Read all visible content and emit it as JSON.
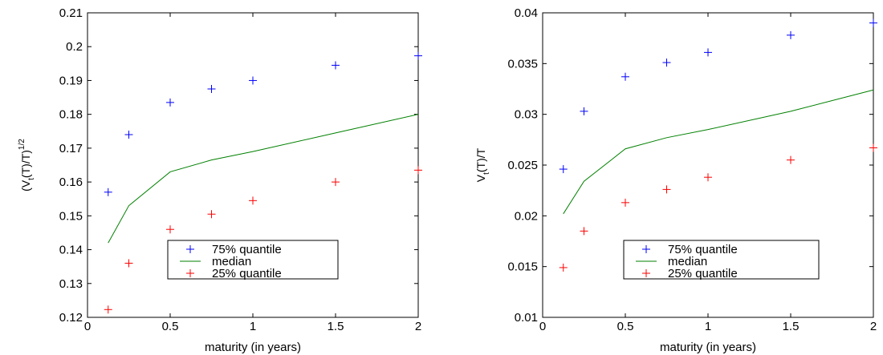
{
  "chart_data": [
    {
      "type": "scatter",
      "xlabel": "maturity (in years)",
      "ylabel": {
        "base": "(V",
        "sub": "t",
        "mid": "(T)/T)",
        "sup": "1/2"
      },
      "xlim": [
        0,
        2
      ],
      "ylim": [
        0.12,
        0.21
      ],
      "xticks": [
        0,
        0.5,
        1,
        1.5,
        2
      ],
      "xtick_labels": [
        "0",
        "0.5",
        "1",
        "1.5",
        "2"
      ],
      "yticks": [
        0.12,
        0.13,
        0.14,
        0.15,
        0.16,
        0.17,
        0.18,
        0.19,
        0.2,
        0.21
      ],
      "ytick_labels": [
        "0.12",
        "0.13",
        "0.14",
        "0.15",
        "0.16",
        "0.17",
        "0.18",
        "0.19",
        "0.2",
        "0.21"
      ],
      "legend_position": "lower-center",
      "grid": false,
      "series": [
        {
          "name": "75% quantile",
          "style": "plus",
          "color": "#0000ff",
          "x": [
            0.125,
            0.25,
            0.5,
            0.75,
            1,
            1.5,
            2
          ],
          "y": [
            0.157,
            0.174,
            0.1835,
            0.1875,
            0.19,
            0.1945,
            0.1973
          ]
        },
        {
          "name": "median",
          "style": "line",
          "color": "#008000",
          "x": [
            0.125,
            0.25,
            0.5,
            0.75,
            1,
            1.5,
            2
          ],
          "y": [
            0.142,
            0.153,
            0.163,
            0.1665,
            0.169,
            0.1745,
            0.18
          ]
        },
        {
          "name": "25% quantile",
          "style": "plus",
          "color": "#ff0000",
          "x": [
            0.125,
            0.25,
            0.5,
            0.75,
            1,
            1.5,
            2
          ],
          "y": [
            0.1223,
            0.136,
            0.146,
            0.1505,
            0.1545,
            0.16,
            0.1635
          ]
        }
      ]
    },
    {
      "type": "scatter",
      "xlabel": "maturity (in years)",
      "ylabel": {
        "base": "V",
        "sub": "t",
        "mid": "(T)/T",
        "sup": ""
      },
      "xlim": [
        0,
        2
      ],
      "ylim": [
        0.01,
        0.04
      ],
      "xticks": [
        0,
        0.5,
        1,
        1.5,
        2
      ],
      "xtick_labels": [
        "0",
        "0.5",
        "1",
        "1.5",
        "2"
      ],
      "yticks": [
        0.01,
        0.015,
        0.02,
        0.025,
        0.03,
        0.035,
        0.04
      ],
      "ytick_labels": [
        "0.01",
        "0.015",
        "0.02",
        "0.025",
        "0.03",
        "0.035",
        "0.04"
      ],
      "legend_position": "lower-center",
      "grid": false,
      "series": [
        {
          "name": "75% quantile",
          "style": "plus",
          "color": "#0000ff",
          "x": [
            0.125,
            0.25,
            0.5,
            0.75,
            1,
            1.5,
            2
          ],
          "y": [
            0.0246,
            0.0303,
            0.0337,
            0.0351,
            0.0361,
            0.0378,
            0.039
          ]
        },
        {
          "name": "median",
          "style": "line",
          "color": "#008000",
          "x": [
            0.125,
            0.25,
            0.5,
            0.75,
            1,
            1.5,
            2
          ],
          "y": [
            0.0202,
            0.0234,
            0.0266,
            0.0277,
            0.0285,
            0.0303,
            0.0324
          ]
        },
        {
          "name": "25% quantile",
          "style": "plus",
          "color": "#ff0000",
          "x": [
            0.125,
            0.25,
            0.5,
            0.75,
            1,
            1.5,
            2
          ],
          "y": [
            0.0149,
            0.0185,
            0.0213,
            0.0226,
            0.0238,
            0.0255,
            0.0267
          ]
        }
      ]
    }
  ]
}
